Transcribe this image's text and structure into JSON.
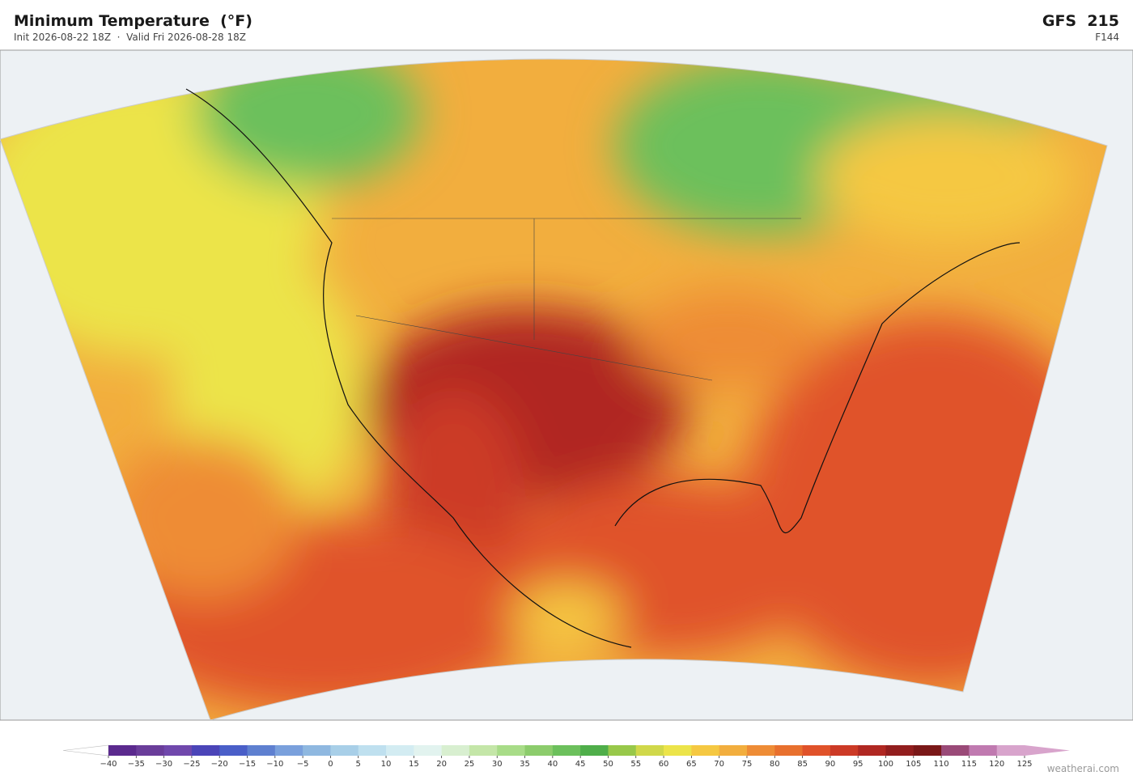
{
  "header": {
    "title": "Minimum Temperature  (°F)",
    "subtitle": "Init 2026-08-22 18Z  ·  Valid Fri 2026-08-28 18Z",
    "model": "GFS  215",
    "forecast": "F144"
  },
  "colorbar": {
    "ticks": [
      {
        "value": -40,
        "label": "−40"
      },
      {
        "value": -35,
        "label": "−35"
      },
      {
        "value": -30,
        "label": "−30"
      },
      {
        "value": -25,
        "label": "−25"
      },
      {
        "value": -20,
        "label": "−20"
      },
      {
        "value": -15,
        "label": "−15"
      },
      {
        "value": -10,
        "label": "−10"
      },
      {
        "value": -5,
        "label": "−5"
      },
      0,
      5,
      10,
      15,
      20,
      25,
      30,
      35,
      40,
      45,
      50,
      55,
      60,
      65,
      70,
      75,
      80,
      85,
      90,
      95,
      100,
      105,
      110,
      115,
      120,
      125
    ],
    "colors": [
      "#5b2a8e",
      "#6a3d9a",
      "#7048ac",
      "#4b45b8",
      "#4a5fc8",
      "#5f80d0",
      "#7aa0dc",
      "#8fb8e0",
      "#a8cfe8",
      "#bfe0ef",
      "#d3ecf2",
      "#e2f3ef",
      "#d8efd0",
      "#c4e6a8",
      "#a8dc88",
      "#8ccc6c",
      "#6cc05c",
      "#4fae4a",
      "#98c84a",
      "#d0d84a",
      "#ece44a",
      "#f5c842",
      "#f2ae3e",
      "#ee8c36",
      "#e8702e",
      "#e0522a",
      "#cc3a26",
      "#b02822",
      "#921e1e",
      "#7a1818",
      "#9a4a78",
      "#c07ab0",
      "#d8a4cc"
    ],
    "under_color": "#ffffff",
    "over_color": "#d8a4cc"
  },
  "credit": "weatherai.com"
}
